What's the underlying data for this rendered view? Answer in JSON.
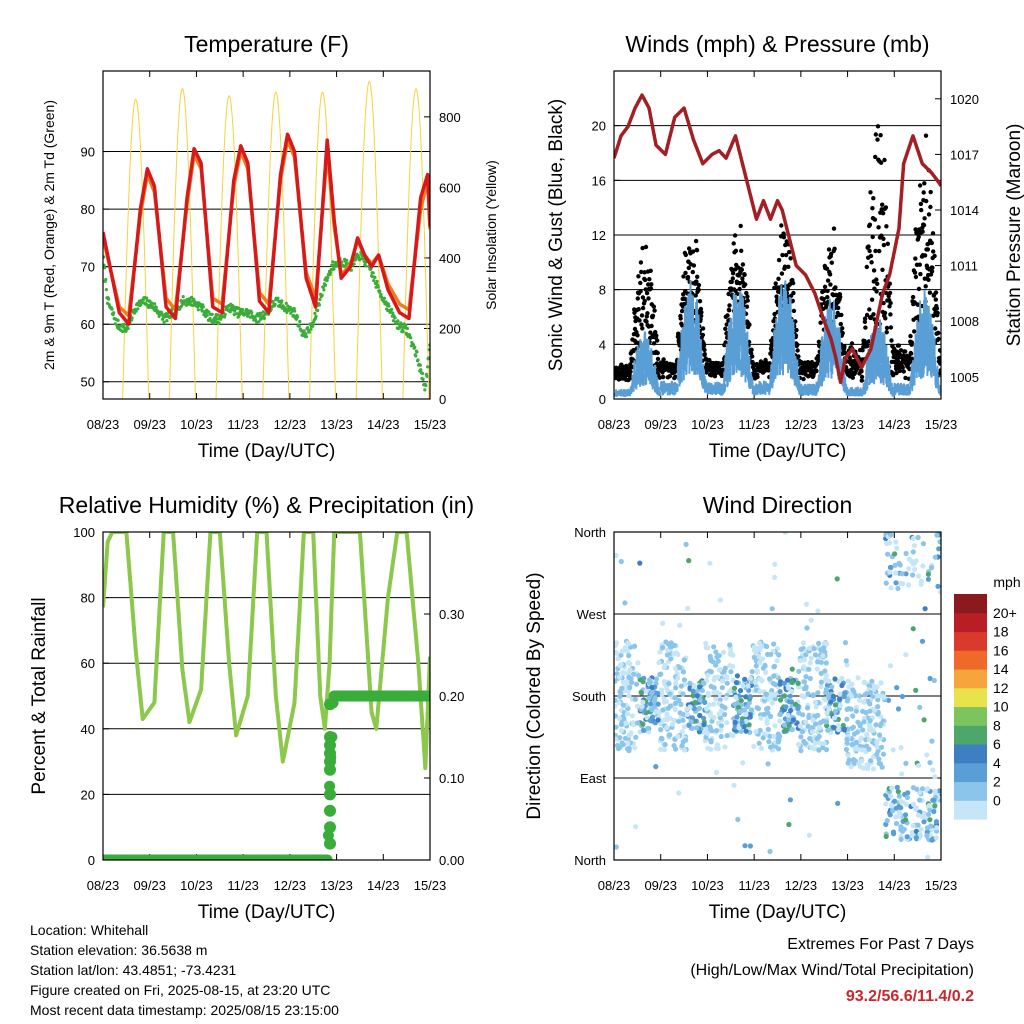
{
  "time_ticks": [
    "08/23",
    "09/23",
    "10/23",
    "11/23",
    "12/23",
    "13/23",
    "14/23",
    "15/23"
  ],
  "xlabel": "Time (Day/UTC)",
  "colors": {
    "temp_2m": "#d7191c",
    "temp_9m": "#f07d1b",
    "dewpoint": "#3aac3a",
    "insolation": "#f5d23c",
    "wind": "#5a9ed6",
    "gust": "#000000",
    "pressure": "#a31f24",
    "rh": "#8cc84b",
    "precip": "#3aac3a",
    "extremes": "#c8282d"
  },
  "chart_data": [
    {
      "type": "line",
      "title": "Temperature (F)",
      "ylabel": "2m & 9m T (Red, Orange) & 2m Td (Green)",
      "ylabel_right": "Solar Insolation (Yellow)",
      "ylim": [
        47,
        104
      ],
      "yticks": [
        50,
        60,
        70,
        80,
        90
      ],
      "ylim_right": [
        0,
        930
      ],
      "yticks_right": [
        0,
        200,
        400,
        600,
        800
      ],
      "grid": true,
      "series": [
        {
          "key": "temp_2m",
          "x": [
            8.0,
            8.35,
            8.55,
            8.8,
            8.95,
            9.1,
            9.35,
            9.55,
            9.8,
            9.95,
            10.1,
            10.35,
            10.55,
            10.8,
            10.95,
            11.1,
            11.35,
            11.55,
            11.8,
            11.95,
            12.1,
            12.35,
            12.55,
            12.8,
            12.95,
            13.1,
            13.3,
            13.45,
            13.6,
            13.75,
            13.9,
            14.1,
            14.35,
            14.55,
            14.8,
            14.95,
            15.0
          ],
          "y": [
            76,
            62,
            60,
            80,
            87,
            84,
            63,
            61,
            82,
            90.5,
            88,
            63,
            62,
            85,
            91,
            88,
            64,
            62,
            86,
            93,
            90,
            68,
            63,
            92,
            78,
            68,
            70,
            75,
            72,
            70,
            72,
            66,
            62,
            61,
            82,
            86,
            77
          ]
        },
        {
          "key": "temp_9m",
          "x": [
            8.0,
            8.35,
            8.55,
            8.8,
            8.95,
            9.1,
            9.35,
            9.55,
            9.8,
            9.95,
            10.1,
            10.35,
            10.55,
            10.8,
            10.95,
            11.1,
            11.35,
            11.55,
            11.8,
            11.95,
            12.1,
            12.35,
            12.55,
            12.8,
            12.95,
            13.1,
            13.3,
            13.45,
            13.6,
            13.75,
            13.9,
            14.1,
            14.35,
            14.55,
            14.8,
            14.95,
            15.0
          ],
          "y": [
            75,
            63,
            61.5,
            79,
            86,
            83,
            64.5,
            62.5,
            81,
            89.5,
            87,
            64.5,
            63.5,
            84,
            90,
            87,
            65.5,
            63.5,
            85,
            92,
            89,
            69,
            64.5,
            90,
            77,
            68.5,
            70.5,
            74.5,
            72,
            70.5,
            72,
            67,
            63.5,
            62.5,
            80,
            85,
            76.5
          ]
        },
        {
          "key": "dewpoint",
          "x": [
            8.0,
            8.1,
            8.3,
            8.5,
            8.7,
            8.9,
            9.1,
            9.3,
            9.5,
            9.7,
            9.9,
            10.1,
            10.3,
            10.5,
            10.7,
            10.9,
            11.1,
            11.3,
            11.5,
            11.7,
            11.9,
            12.1,
            12.3,
            12.5,
            12.7,
            12.9,
            13.1,
            13.3,
            13.5,
            13.7,
            13.9,
            14.1,
            14.3,
            14.5,
            14.7,
            14.9,
            15.0
          ],
          "y": [
            72,
            64,
            60,
            59,
            63,
            64,
            63,
            61,
            62,
            64,
            64,
            63,
            61,
            61,
            63,
            62,
            62,
            61,
            62,
            64,
            63,
            62,
            58,
            60,
            66,
            70,
            71,
            70,
            72,
            70,
            66,
            63,
            60,
            59,
            55,
            49,
            56
          ]
        }
      ],
      "insolation": {
        "days": [
          8,
          9,
          10,
          11,
          12,
          13,
          14
        ],
        "peak": [
          850,
          880,
          860,
          870,
          870,
          900,
          880
        ],
        "sunrise": 0.42,
        "sunset": 0.98
      }
    },
    {
      "type": "scatter",
      "title": "Winds (mph) & Pressure (mb)",
      "ylabel": "Sonic Wind & Gust (Blue, Black)",
      "ylabel_right": "Station Pressure (Maroon)",
      "ylim": [
        0,
        24
      ],
      "yticks": [
        0,
        4,
        8,
        12,
        16,
        20
      ],
      "ylim_right": [
        1003.8,
        1021.5
      ],
      "yticks_right": [
        1005,
        1008,
        1011,
        1014,
        1017,
        1020
      ],
      "grid": true,
      "wind_daily_peak": [
        5,
        9,
        8.5,
        9,
        7.5,
        6,
        8,
        4
      ],
      "gust_daily_peak": [
        11,
        13,
        13,
        13,
        12,
        21,
        20,
        12
      ],
      "pressure": {
        "x": [
          8.0,
          8.15,
          8.3,
          8.45,
          8.6,
          8.75,
          8.9,
          9.1,
          9.3,
          9.5,
          9.7,
          9.9,
          10.1,
          10.25,
          10.4,
          10.6,
          10.75,
          10.9,
          11.05,
          11.2,
          11.35,
          11.5,
          11.6,
          11.75,
          11.9,
          12.1,
          12.3,
          12.5,
          12.65,
          12.75,
          12.85,
          12.95,
          13.1,
          13.3,
          13.5,
          13.65,
          13.75,
          13.9,
          14.1,
          14.2,
          14.4,
          14.6,
          14.8,
          14.95,
          15.0
        ],
        "y": [
          1016.8,
          1018,
          1018.5,
          1019.5,
          1020.2,
          1019.5,
          1017.5,
          1017,
          1019,
          1019.5,
          1017.8,
          1016.5,
          1017,
          1017.2,
          1016.8,
          1018,
          1016.5,
          1015,
          1013.5,
          1014.5,
          1013.5,
          1014.5,
          1014,
          1012.5,
          1011,
          1010.5,
          1009.5,
          1008,
          1007,
          1006,
          1004.7,
          1006,
          1006.5,
          1005.5,
          1006.5,
          1008.3,
          1009.5,
          1010.5,
          1013,
          1016.5,
          1018,
          1016.5,
          1016,
          1015.5,
          1015.3
        ]
      }
    },
    {
      "type": "line",
      "title": "Relative Humidity (%) & Precipitation (in)",
      "ylabel": "Percent & Total Rainfall",
      "ylim": [
        0,
        100
      ],
      "yticks": [
        0,
        20,
        40,
        60,
        80,
        100
      ],
      "ylim_right": [
        0,
        0.4
      ],
      "yticks_right": [
        "0.00",
        "0.10",
        "0.20",
        "0.30"
      ],
      "grid": true,
      "rh": {
        "x": [
          8.0,
          8.1,
          8.2,
          8.5,
          8.7,
          8.85,
          9.1,
          9.3,
          9.5,
          9.7,
          9.85,
          10.1,
          10.3,
          10.5,
          10.7,
          10.85,
          11.1,
          11.3,
          11.5,
          11.7,
          11.85,
          12.1,
          12.3,
          12.5,
          12.65,
          12.75,
          12.85,
          12.95,
          13.1,
          13.3,
          13.5,
          13.75,
          13.85,
          14.1,
          14.3,
          14.5,
          14.75,
          14.9,
          15.0
        ],
        "y": [
          77,
          97,
          100,
          100,
          64,
          43,
          48,
          100,
          100,
          58,
          42,
          52,
          100,
          100,
          60,
          38,
          50,
          100,
          100,
          50,
          30,
          48,
          100,
          100,
          50,
          40,
          60,
          100,
          100,
          100,
          100,
          45,
          40,
          80,
          100,
          100,
          60,
          28,
          62
        ]
      },
      "precip": {
        "x": [
          8.0,
          8.5,
          9,
          9.5,
          10,
          10.5,
          11,
          11.5,
          12,
          12.5,
          12.8,
          12.82,
          12.83,
          12.84,
          12.85,
          12.86,
          12.87,
          12.88,
          12.89,
          12.9,
          12.92,
          12.95,
          13.0,
          13.5,
          14,
          14.5,
          15.0
        ],
        "y": [
          0,
          0,
          0,
          0,
          0,
          0,
          0,
          0,
          0,
          0,
          0,
          0.02,
          0.04,
          0.07,
          0.09,
          0.11,
          0.12,
          0.13,
          0.14,
          0.15,
          0.19,
          0.2,
          0.2,
          0.2,
          0.2,
          0.2,
          0.2
        ]
      }
    },
    {
      "type": "scatter",
      "title": "Wind Direction",
      "ylabel": "Direction (Colored By Speed)",
      "ylim": [
        0,
        360
      ],
      "yticks": [
        "North",
        "East",
        "South",
        "West",
        "North"
      ],
      "grid": true,
      "colorbar": {
        "title": "mph",
        "labels": [
          "0",
          "2",
          "4",
          "6",
          "8",
          "10",
          "12",
          "14",
          "16",
          "18",
          "20+"
        ],
        "colors": [
          "#c6e6f7",
          "#8cc5ea",
          "#5a9ed6",
          "#3d7fc0",
          "#4da66a",
          "#7cc45d",
          "#e8e24b",
          "#f5a53c",
          "#ef6a2a",
          "#d93a2b",
          "#b81f24",
          "#8b1a1e"
        ]
      }
    }
  ],
  "station": {
    "location": "Location: Whitehall",
    "elevation": "Station elevation: 36.5638 m",
    "latlon": "Station lat/lon: 43.4851; -73.4231",
    "created": "Figure created on Fri, 2025-08-15, at 23:20 UTC",
    "recent": "Most recent data timestamp: 2025/08/15 23:15:00"
  },
  "extremes": {
    "title": "Extremes For Past 7 Days",
    "subtitle": "(High/Low/Max Wind/Total Precipitation)",
    "values": "93.2/56.6/11.4/0.2"
  }
}
